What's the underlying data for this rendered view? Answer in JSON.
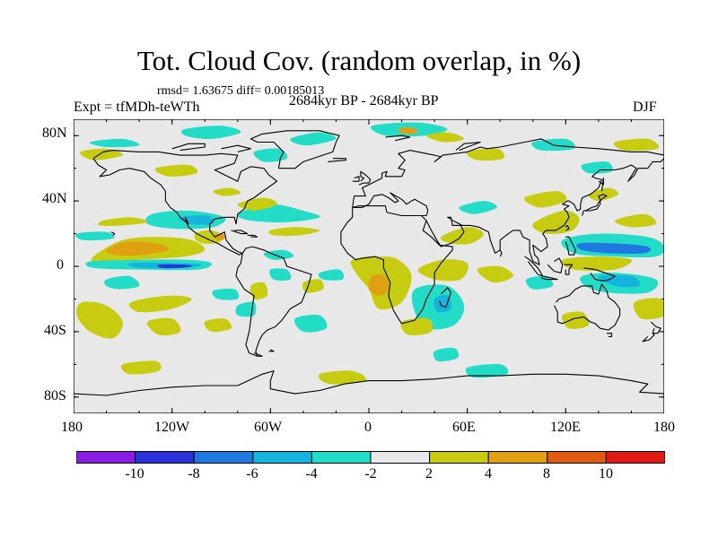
{
  "title": "Tot. Cloud Cov. (random overlap, in %)",
  "stats": "rmsd= 1.63675 diff= 0.00185013",
  "experiment": "Expt = tfMDh-teWTh",
  "period": "2684kyr BP - 2684kyr BP",
  "season": "DJF",
  "colors": {
    "neutral": "#e8e8e8",
    "c_le_m10": "#8a1ee0",
    "c_m10_m8": "#2a32d8",
    "c_m8_m6": "#1e78e0",
    "c_m6_m4": "#14b4dc",
    "c_m4_m2": "#22dcc8",
    "c_2_4": "#c8cc10",
    "c_4_8": "#e0a012",
    "c_8_10": "#e05a12",
    "c_ge_10": "#e01a14"
  },
  "chart_data": {
    "type": "heatmap",
    "projection": "cylindrical equidistant",
    "variable": "Total cloud cover difference (random overlap)",
    "units": "%",
    "lon_range": [
      -180,
      180
    ],
    "lat_range": [
      -90,
      90
    ],
    "x_ticks": [
      "180",
      "120W",
      "60W",
      "0",
      "60E",
      "120E",
      "180"
    ],
    "x_tick_values": [
      -180,
      -120,
      -60,
      0,
      60,
      120,
      180
    ],
    "y_ticks": [
      "80N",
      "40N",
      "0",
      "40S",
      "80S"
    ],
    "y_tick_values": [
      80,
      40,
      0,
      -40,
      -80
    ],
    "colorbar": {
      "labels": [
        "-10",
        "-8",
        "-6",
        "-4",
        "-2",
        "2",
        "4",
        "8",
        "10"
      ],
      "levels": [
        -10,
        -8,
        -6,
        -4,
        -2,
        2,
        4,
        8,
        10
      ],
      "bins": [
        "c_le_m10",
        "c_m10_m8",
        "c_m8_m6",
        "c_m6_m4",
        "c_m4_m2",
        "neutral",
        "c_2_4",
        "c_4_8",
        "c_8_10",
        "c_ge_10"
      ]
    },
    "features": [
      {
        "region": "Central tropical Pacific",
        "lon": -140,
        "lat": 10,
        "level": "c_4_8"
      },
      {
        "region": "Central tropical Pacific band",
        "lon": -140,
        "lat": 14,
        "level": "c_2_4"
      },
      {
        "region": "Equatorial east Pacific",
        "lon": -120,
        "lat": 0,
        "level": "c_m10_m8"
      },
      {
        "region": "Equatorial east Pacific band",
        "lon": -125,
        "lat": 0,
        "level": "c_m6_m4"
      },
      {
        "region": "Subtropical North Pacific",
        "lon": -110,
        "lat": 28,
        "level": "c_m4_m2"
      },
      {
        "region": "Gulf of Mexico",
        "lon": -90,
        "lat": 24,
        "level": "c_4_8"
      },
      {
        "region": "North Atlantic",
        "lon": -50,
        "lat": 30,
        "level": "c_m4_m2"
      },
      {
        "region": "West Pacific warm pool",
        "lon": 140,
        "lat": 10,
        "level": "c_m8_m6"
      },
      {
        "region": "Northwest Pacific",
        "lon": 150,
        "lat": 18,
        "level": "c_m4_m2"
      },
      {
        "region": "Southwest Pacific",
        "lon": 150,
        "lat": -10,
        "level": "c_m6_m4"
      },
      {
        "region": "South Atlantic coast of Africa",
        "lon": 10,
        "lat": -12,
        "level": "c_4_8"
      },
      {
        "region": "Southern Africa / Madagascar",
        "lon": 45,
        "lat": -20,
        "level": "c_m4_m2"
      },
      {
        "region": "Southeast Pacific",
        "lon": -165,
        "lat": -30,
        "level": "c_2_4"
      },
      {
        "region": "Arctic Ocean near Svalbard",
        "lon": 20,
        "lat": 84,
        "level": "c_4_8"
      }
    ]
  }
}
